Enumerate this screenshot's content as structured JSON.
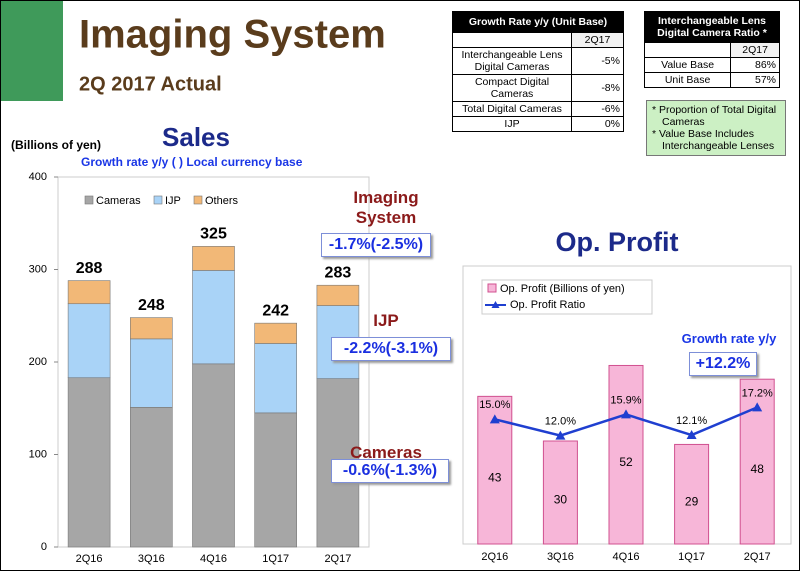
{
  "header": {
    "title": "Imaging System",
    "subtitle": "2Q 2017 Actual"
  },
  "growth_table": {
    "title": "Growth Rate y/y  (Unit Base)",
    "columns": [
      "2Q17"
    ],
    "rows": [
      [
        "Interchangeable Lens Digital Cameras",
        "-5%"
      ],
      [
        "Compact Digital Cameras",
        "-8%"
      ],
      [
        "Total Digital Cameras",
        "-6%"
      ],
      [
        "IJP",
        "0%"
      ]
    ]
  },
  "ratio_table": {
    "title": "Interchangeable Lens Digital Camera Ratio *",
    "columns": [
      "2Q17"
    ],
    "rows": [
      [
        "Value Base",
        "86%"
      ],
      [
        "Unit Base",
        "57%"
      ]
    ]
  },
  "notes": [
    "* Proportion of Total Digital Cameras",
    "* Value Base Includes Interchangeable Lenses"
  ],
  "chart_data": [
    {
      "type": "stacked_bar",
      "title": "Sales",
      "subtitle": "Growth rate y/y  ( ) Local currency base",
      "ylabel": "(Billions of yen)",
      "categories": [
        "2Q16",
        "3Q16",
        "4Q16",
        "1Q17",
        "2Q17"
      ],
      "series": [
        {
          "name": "Cameras",
          "color": "#a6a6a6",
          "values": [
            183,
            151,
            198,
            145,
            182
          ]
        },
        {
          "name": "IJP",
          "color": "#a9d3f7",
          "values": [
            80,
            74,
            101,
            75,
            79
          ]
        },
        {
          "name": "Others",
          "color": "#f2b877",
          "values": [
            25,
            23,
            26,
            22,
            22
          ]
        }
      ],
      "totals": [
        288,
        248,
        325,
        242,
        283
      ],
      "ylim": [
        0,
        400
      ],
      "yticks": [
        0,
        100,
        200,
        300,
        400
      ],
      "legend": "upper left",
      "segment_notes": [
        {
          "label": "Imaging System",
          "growth": "-1.7%(-2.5%)"
        },
        {
          "label": "IJP",
          "growth": "-2.2%(-3.1%)"
        },
        {
          "label": "Cameras",
          "growth": "-0.6%(-1.3%)"
        }
      ]
    },
    {
      "type": "bar_line",
      "title": "Op. Profit",
      "categories": [
        "2Q16",
        "3Q16",
        "4Q16",
        "1Q17",
        "2Q17"
      ],
      "series": [
        {
          "name": "Op. Profit (Billions of yen)",
          "color": "#f7b6d8",
          "values": [
            43,
            30,
            52,
            29,
            48
          ]
        },
        {
          "name": "Op. Profit Ratio",
          "color": "#1f3fd0",
          "axis": "y2",
          "values": [
            15.0,
            12.0,
            15.9,
            12.1,
            17.2
          ],
          "value_labels": [
            "15.0%",
            "12.0%",
            "15.9%",
            "12.1%",
            "17.2%"
          ]
        }
      ],
      "ylim": [
        0,
        60
      ],
      "y2lim": [
        -8,
        30
      ],
      "legend": "upper left",
      "annotations": [
        "Growth rate y/y",
        "+12.2%"
      ]
    }
  ]
}
